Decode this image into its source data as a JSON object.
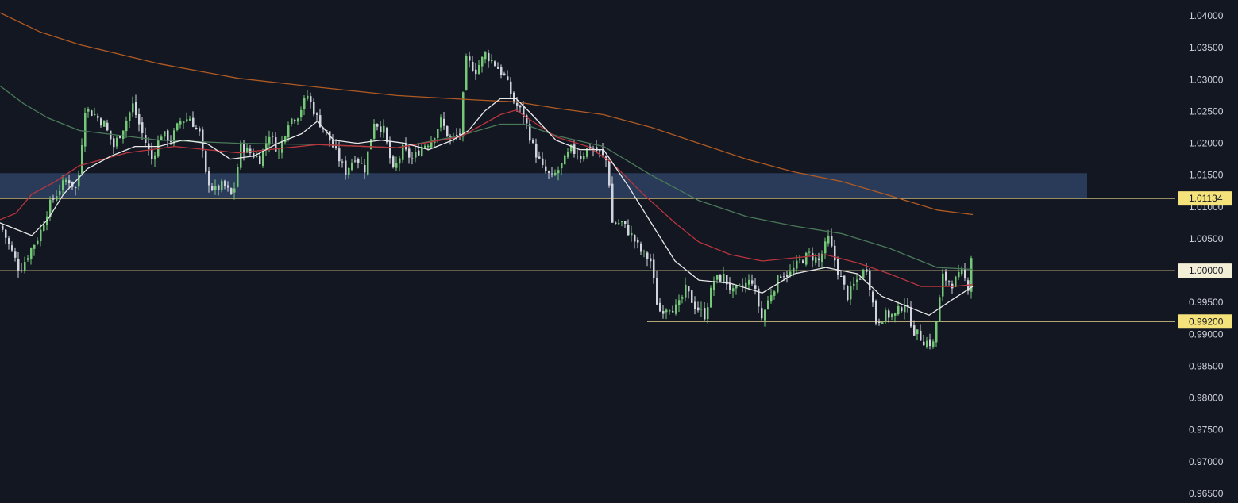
{
  "chart_data": {
    "type": "candlestick",
    "title": "",
    "xlabel": "",
    "ylabel": "",
    "ylim": [
      0.9635,
      1.0425
    ],
    "grid": false,
    "legend": "none",
    "y_ticks": [
      "1.04000",
      "1.03500",
      "1.03000",
      "1.02500",
      "1.02000",
      "1.01500",
      "1.01000",
      "1.00500",
      "1.00000",
      "0.99500",
      "0.99000",
      "0.98500",
      "0.98000",
      "0.97500",
      "0.97000",
      "0.96500"
    ],
    "y_tick_values": [
      1.04,
      1.035,
      1.03,
      1.025,
      1.02,
      1.015,
      1.01,
      1.005,
      1.0,
      0.995,
      0.99,
      0.985,
      0.98,
      0.975,
      0.97,
      0.965
    ],
    "zone": {
      "from": 1.0113,
      "to": 1.0153,
      "color": "#2b3d5e"
    },
    "levels": [
      {
        "value": 1.01134,
        "label": "1.01134",
        "color": "#e6d690"
      },
      {
        "value": 1.0,
        "label": "1.00000",
        "color": "#e6d690"
      },
      {
        "value": 0.992,
        "label": "0.99200",
        "color": "#e6d690"
      }
    ],
    "colors": {
      "background": "#131722",
      "bull": "#74c878",
      "bear": "#d1d4dc",
      "ma_fast": "#e8e8e8",
      "ma_mid": "#b8353d",
      "ma_slow": "#4a7a5a",
      "ma_long": "#b05a22"
    },
    "moving_averages": [
      {
        "color": "#b05a22",
        "points": [
          [
            0,
            1.0405
          ],
          [
            50,
            1.0375
          ],
          [
            100,
            1.0355
          ],
          [
            200,
            1.0325
          ],
          [
            300,
            1.0302
          ],
          [
            400,
            1.0288
          ],
          [
            500,
            1.0275
          ],
          [
            600,
            1.0268
          ],
          [
            650,
            1.0265
          ],
          [
            700,
            1.0255
          ],
          [
            760,
            1.0245
          ],
          [
            820,
            1.0225
          ],
          [
            880,
            1.02
          ],
          [
            940,
            1.0175
          ],
          [
            1000,
            1.0155
          ],
          [
            1060,
            1.014
          ],
          [
            1120,
            1.0118
          ],
          [
            1180,
            1.0095
          ],
          [
            1225,
            1.0088
          ]
        ]
      },
      {
        "color": "#4a7a5a",
        "points": [
          [
            0,
            1.029
          ],
          [
            30,
            1.0262
          ],
          [
            60,
            1.024
          ],
          [
            100,
            1.022
          ],
          [
            200,
            1.0205
          ],
          [
            300,
            1.02
          ],
          [
            400,
            1.0198
          ],
          [
            500,
            1.0193
          ],
          [
            580,
            1.0212
          ],
          [
            630,
            1.023
          ],
          [
            660,
            1.023
          ],
          [
            700,
            1.0212
          ],
          [
            760,
            1.0195
          ],
          [
            820,
            1.015
          ],
          [
            880,
            1.011
          ],
          [
            940,
            1.0085
          ],
          [
            1000,
            1.007
          ],
          [
            1060,
            1.0058
          ],
          [
            1120,
            1.0035
          ],
          [
            1180,
            1.0005
          ],
          [
            1225,
            1.0002
          ]
        ]
      },
      {
        "color": "#b8353d",
        "points": [
          [
            0,
            1.008
          ],
          [
            20,
            1.009
          ],
          [
            40,
            1.012
          ],
          [
            70,
            1.014
          ],
          [
            100,
            1.0165
          ],
          [
            160,
            1.0185
          ],
          [
            220,
            1.0195
          ],
          [
            300,
            1.0185
          ],
          [
            400,
            1.0198
          ],
          [
            500,
            1.0193
          ],
          [
            580,
            1.021
          ],
          [
            630,
            1.0245
          ],
          [
            650,
            1.0252
          ],
          [
            670,
            1.0235
          ],
          [
            700,
            1.021
          ],
          [
            740,
            1.0195
          ],
          [
            770,
            1.017
          ],
          [
            810,
            1.012
          ],
          [
            850,
            1.0075
          ],
          [
            880,
            1.0045
          ],
          [
            920,
            1.0025
          ],
          [
            960,
            1.0015
          ],
          [
            1000,
            1.002
          ],
          [
            1040,
            1.0025
          ],
          [
            1080,
            1.0012
          ],
          [
            1120,
            0.9995
          ],
          [
            1160,
            0.9975
          ],
          [
            1200,
            0.9975
          ],
          [
            1225,
            0.9978
          ]
        ]
      },
      {
        "color": "#e8e8e8",
        "points": [
          [
            0,
            1.0075
          ],
          [
            20,
            1.0065
          ],
          [
            40,
            1.0055
          ],
          [
            60,
            1.008
          ],
          [
            80,
            1.012
          ],
          [
            110,
            1.016
          ],
          [
            140,
            1.018
          ],
          [
            170,
            1.0195
          ],
          [
            200,
            1.0195
          ],
          [
            230,
            1.0205
          ],
          [
            260,
            1.02
          ],
          [
            290,
            1.0175
          ],
          [
            320,
            1.018
          ],
          [
            350,
            1.02
          ],
          [
            380,
            1.0215
          ],
          [
            400,
            1.0235
          ],
          [
            420,
            1.0205
          ],
          [
            450,
            1.02
          ],
          [
            480,
            1.0205
          ],
          [
            510,
            1.02
          ],
          [
            540,
            1.019
          ],
          [
            570,
            1.0205
          ],
          [
            590,
            1.022
          ],
          [
            610,
            1.025
          ],
          [
            630,
            1.027
          ],
          [
            650,
            1.027
          ],
          [
            670,
            1.0245
          ],
          [
            700,
            1.0205
          ],
          [
            730,
            1.019
          ],
          [
            760,
            1.019
          ],
          [
            790,
            1.0135
          ],
          [
            820,
            1.0075
          ],
          [
            850,
            1.0015
          ],
          [
            880,
            0.9985
          ],
          [
            920,
            0.998
          ],
          [
            960,
            0.9965
          ],
          [
            1000,
            0.9995
          ],
          [
            1040,
            1.0005
          ],
          [
            1080,
            0.9995
          ],
          [
            1110,
            0.996
          ],
          [
            1140,
            0.9945
          ],
          [
            1170,
            0.993
          ],
          [
            1200,
            0.9955
          ],
          [
            1225,
            0.9975
          ]
        ]
      }
    ],
    "anchors": [
      [
        0,
        1.007
      ],
      [
        12,
        1.0035
      ],
      [
        24,
        1.0
      ],
      [
        36,
        1.003
      ],
      [
        48,
        1.0055
      ],
      [
        60,
        1.01
      ],
      [
        72,
        1.0125
      ],
      [
        84,
        1.0145
      ],
      [
        96,
        1.0125
      ],
      [
        106,
        1.0255
      ],
      [
        118,
        1.0245
      ],
      [
        130,
        1.023
      ],
      [
        142,
        1.0195
      ],
      [
        154,
        1.0225
      ],
      [
        166,
        1.026
      ],
      [
        178,
        1.0215
      ],
      [
        190,
        1.0175
      ],
      [
        202,
        1.0215
      ],
      [
        214,
        1.0205
      ],
      [
        226,
        1.0235
      ],
      [
        238,
        1.024
      ],
      [
        250,
        1.0215
      ],
      [
        258,
        1.015
      ],
      [
        268,
        1.0125
      ],
      [
        280,
        1.0135
      ],
      [
        292,
        1.0115
      ],
      [
        302,
        1.0195
      ],
      [
        314,
        1.0185
      ],
      [
        326,
        1.0175
      ],
      [
        338,
        1.0215
      ],
      [
        350,
        1.0185
      ],
      [
        362,
        1.0235
      ],
      [
        374,
        1.0245
      ],
      [
        386,
        1.0275
      ],
      [
        398,
        1.024
      ],
      [
        410,
        1.0215
      ],
      [
        422,
        1.0185
      ],
      [
        434,
        1.0155
      ],
      [
        446,
        1.018
      ],
      [
        458,
        1.016
      ],
      [
        470,
        1.0235
      ],
      [
        482,
        1.022
      ],
      [
        494,
        1.0155
      ],
      [
        506,
        1.019
      ],
      [
        518,
        1.0175
      ],
      [
        530,
        1.0195
      ],
      [
        542,
        1.0205
      ],
      [
        554,
        1.0235
      ],
      [
        566,
        1.0205
      ],
      [
        578,
        1.0215
      ],
      [
        586,
        1.033
      ],
      [
        598,
        1.0315
      ],
      [
        610,
        1.034
      ],
      [
        622,
        1.0325
      ],
      [
        634,
        1.0305
      ],
      [
        646,
        1.0265
      ],
      [
        658,
        1.0245
      ],
      [
        670,
        1.0195
      ],
      [
        682,
        1.016
      ],
      [
        694,
        1.0145
      ],
      [
        706,
        1.0165
      ],
      [
        718,
        1.019
      ],
      [
        730,
        1.018
      ],
      [
        742,
        1.0195
      ],
      [
        754,
        1.0185
      ],
      [
        764,
        1.017
      ],
      [
        770,
        1.0075
      ],
      [
        782,
        1.0075
      ],
      [
        794,
        1.0055
      ],
      [
        806,
        1.003
      ],
      [
        818,
        1.0015
      ],
      [
        828,
        0.9935
      ],
      [
        840,
        0.9945
      ],
      [
        852,
        0.994
      ],
      [
        862,
        0.997
      ],
      [
        874,
        0.9945
      ],
      [
        886,
        0.993
      ],
      [
        898,
        0.9985
      ],
      [
        910,
        0.999
      ],
      [
        922,
        0.9965
      ],
      [
        934,
        0.9975
      ],
      [
        946,
        0.9985
      ],
      [
        958,
        0.9925
      ],
      [
        970,
        0.9965
      ],
      [
        982,
        0.9995
      ],
      [
        994,
        0.9995
      ],
      [
        1006,
        1.0015
      ],
      [
        1018,
        1.0025
      ],
      [
        1030,
        1.0015
      ],
      [
        1042,
        1.005
      ],
      [
        1054,
        1.0
      ],
      [
        1066,
        0.996
      ],
      [
        1078,
        0.9985
      ],
      [
        1090,
        1.0005
      ],
      [
        1102,
        0.992
      ],
      [
        1114,
        0.993
      ],
      [
        1126,
        0.993
      ],
      [
        1138,
        0.995
      ],
      [
        1150,
        0.9905
      ],
      [
        1162,
        0.989
      ],
      [
        1174,
        0.9885
      ],
      [
        1186,
        0.999
      ],
      [
        1198,
        0.998
      ],
      [
        1210,
        0.9995
      ],
      [
        1218,
        0.9975
      ],
      [
        1225,
        1.006
      ]
    ]
  }
}
